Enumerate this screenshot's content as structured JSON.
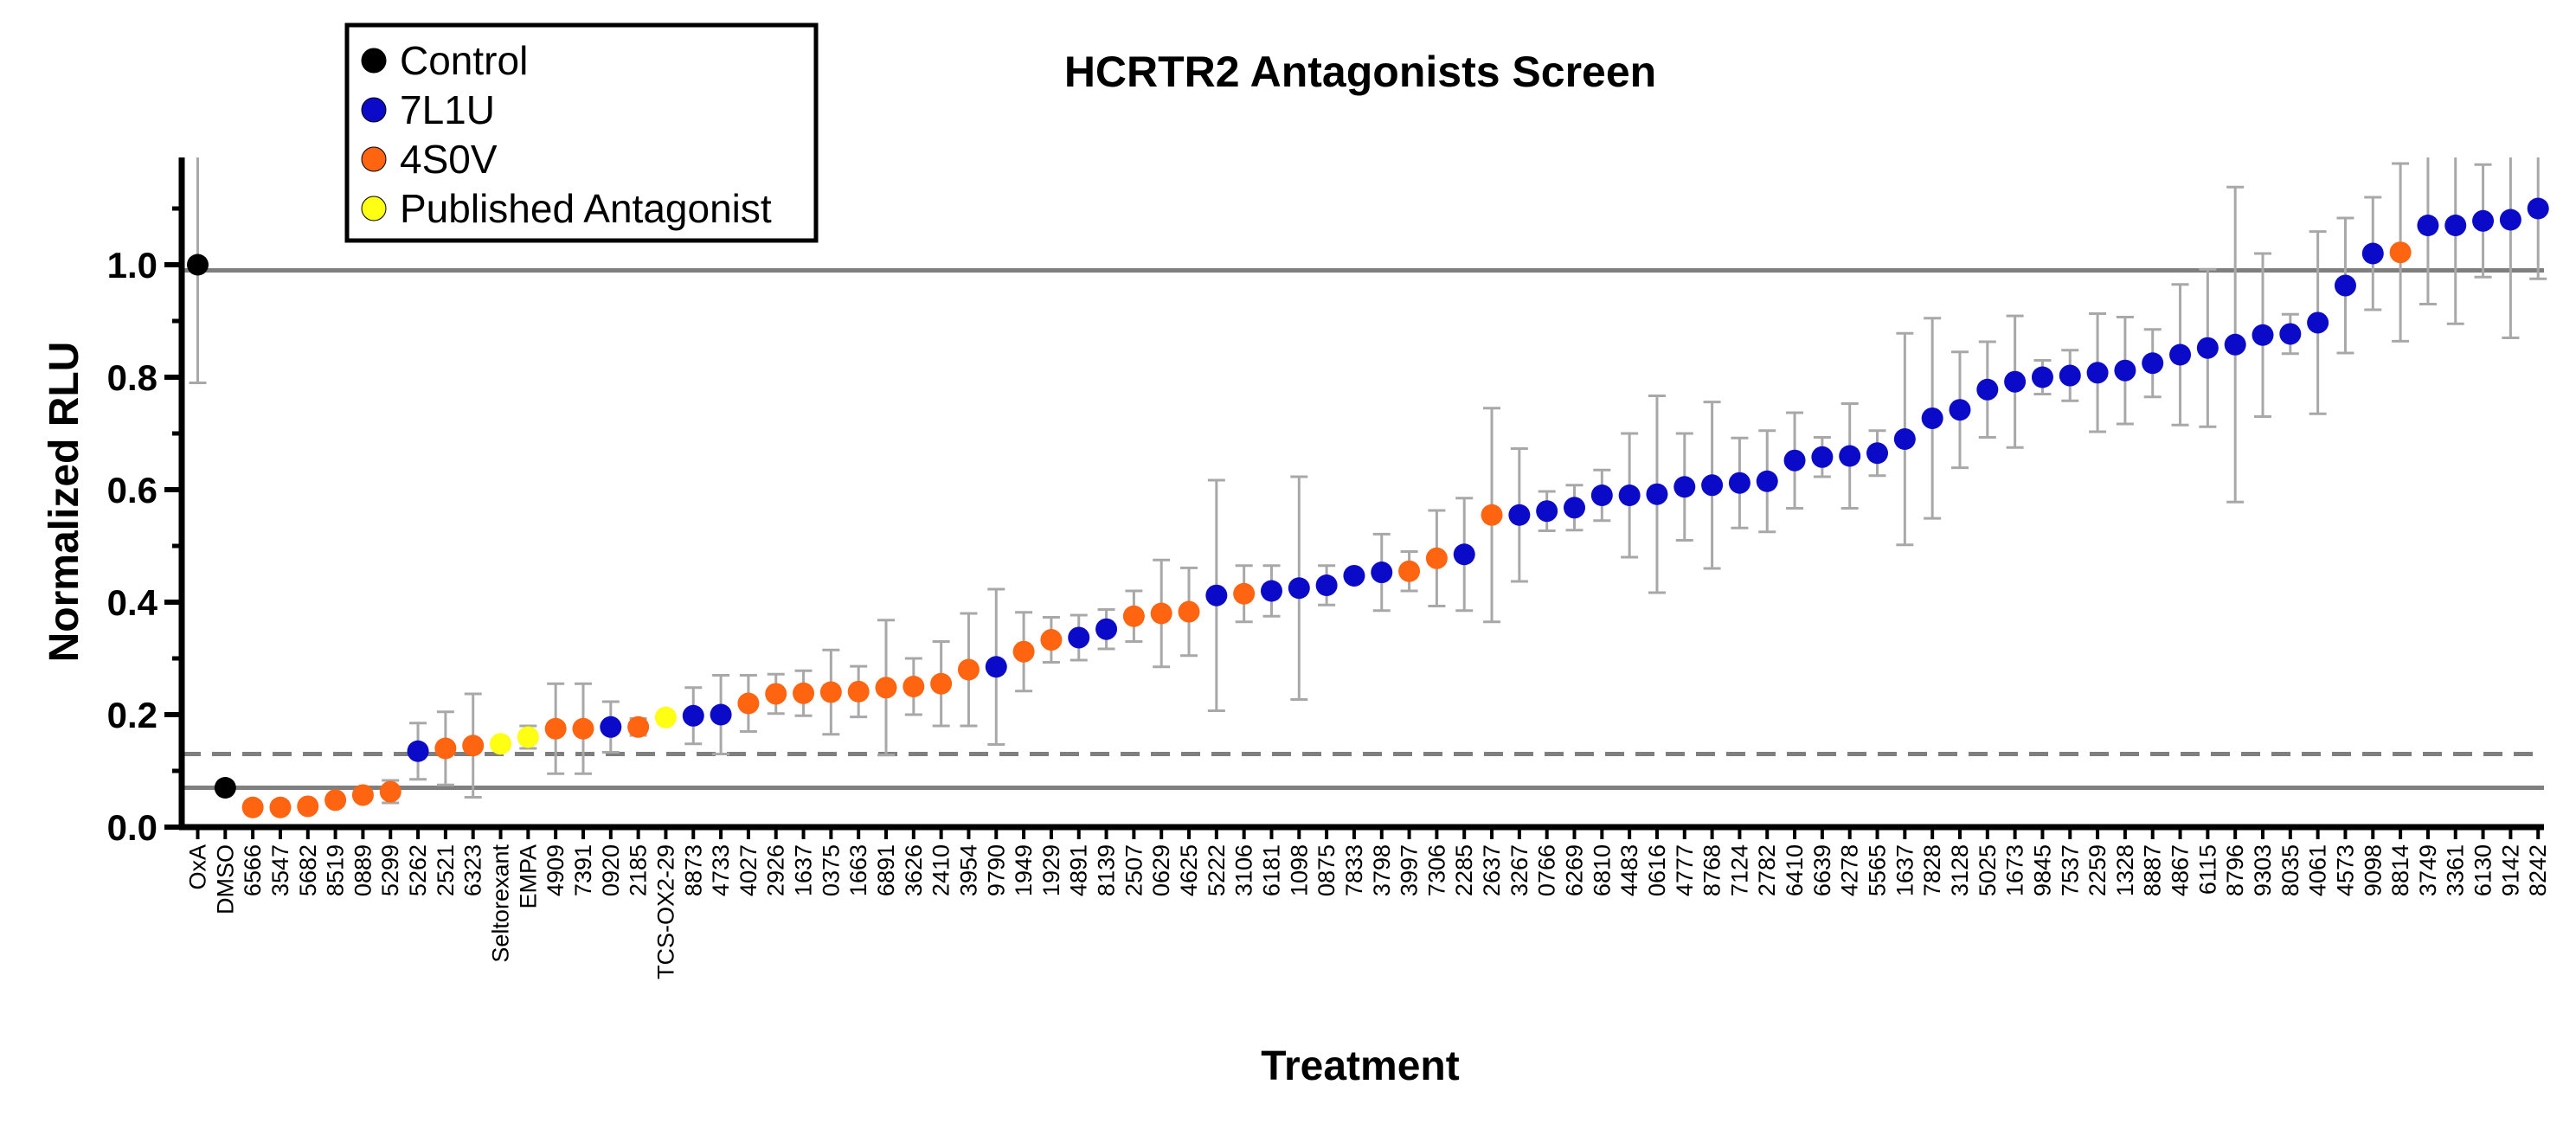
{
  "chart_data": {
    "type": "scatter",
    "title": "HCRTR2 Antagonists Screen",
    "xlabel": "Treatment",
    "ylabel": "Normalized RLU",
    "ylim": [
      0.0,
      1.2
    ],
    "y_ticks": [
      "0.0",
      "0.2",
      "0.4",
      "0.6",
      "0.8",
      "1.0"
    ],
    "grid": false,
    "legend_position": "top-left",
    "colors": {
      "Control": "#000000",
      "7L1U": "#0a0ac8",
      "4S0V": "#ff6410",
      "Published Antagonist": "#ffff14",
      "error_bar": "#a8a8a8",
      "reference_line": "#7f7f7f"
    },
    "legend": [
      "Control",
      "7L1U",
      "4S0V",
      "Published Antagonist"
    ],
    "reference_lines": [
      {
        "y": 0.99,
        "style": "solid"
      },
      {
        "y": 0.07,
        "style": "solid"
      },
      {
        "y": 0.13,
        "style": "dashed"
      }
    ],
    "points": [
      {
        "label": "OxA",
        "group": "Control",
        "y": 1.0,
        "err": 0.21
      },
      {
        "label": "DMSO",
        "group": "Control",
        "y": 0.07,
        "err": 0.0
      },
      {
        "label": "6566",
        "group": "4S0V",
        "y": 0.035,
        "err": 0.01
      },
      {
        "label": "3547",
        "group": "4S0V",
        "y": 0.035,
        "err": 0.01
      },
      {
        "label": "5682",
        "group": "4S0V",
        "y": 0.037,
        "err": 0.01
      },
      {
        "label": "8519",
        "group": "4S0V",
        "y": 0.048,
        "err": 0.01
      },
      {
        "label": "0889",
        "group": "4S0V",
        "y": 0.057,
        "err": 0.01
      },
      {
        "label": "5299",
        "group": "4S0V",
        "y": 0.063,
        "err": 0.02
      },
      {
        "label": "5262",
        "group": "7L1U",
        "y": 0.135,
        "err": 0.05
      },
      {
        "label": "2521",
        "group": "4S0V",
        "y": 0.14,
        "err": 0.065
      },
      {
        "label": "6323",
        "group": "4S0V",
        "y": 0.145,
        "err": 0.092
      },
      {
        "label": "Seltorexant",
        "group": "Published Antagonist",
        "y": 0.148,
        "err": 0.01
      },
      {
        "label": "EMPA",
        "group": "Published Antagonist",
        "y": 0.16,
        "err": 0.02
      },
      {
        "label": "4909",
        "group": "4S0V",
        "y": 0.175,
        "err": 0.08
      },
      {
        "label": "7391",
        "group": "4S0V",
        "y": 0.175,
        "err": 0.08
      },
      {
        "label": "0920",
        "group": "7L1U",
        "y": 0.178,
        "err": 0.045
      },
      {
        "label": "2185",
        "group": "4S0V",
        "y": 0.178,
        "err": 0.015
      },
      {
        "label": "TCS-OX2-29",
        "group": "Published Antagonist",
        "y": 0.195,
        "err": 0.01
      },
      {
        "label": "8873",
        "group": "7L1U",
        "y": 0.198,
        "err": 0.05
      },
      {
        "label": "4733",
        "group": "7L1U",
        "y": 0.2,
        "err": 0.07
      },
      {
        "label": "4027",
        "group": "4S0V",
        "y": 0.22,
        "err": 0.05
      },
      {
        "label": "2926",
        "group": "4S0V",
        "y": 0.237,
        "err": 0.035
      },
      {
        "label": "1637",
        "group": "4S0V",
        "y": 0.238,
        "err": 0.04
      },
      {
        "label": "0375",
        "group": "4S0V",
        "y": 0.24,
        "err": 0.075
      },
      {
        "label": "1663",
        "group": "4S0V",
        "y": 0.241,
        "err": 0.045
      },
      {
        "label": "6891",
        "group": "4S0V",
        "y": 0.248,
        "err": 0.12
      },
      {
        "label": "3626",
        "group": "4S0V",
        "y": 0.25,
        "err": 0.05
      },
      {
        "label": "2410",
        "group": "4S0V",
        "y": 0.255,
        "err": 0.075
      },
      {
        "label": "3954",
        "group": "4S0V",
        "y": 0.28,
        "err": 0.1
      },
      {
        "label": "9790",
        "group": "7L1U",
        "y": 0.285,
        "err": 0.138
      },
      {
        "label": "1949",
        "group": "4S0V",
        "y": 0.312,
        "err": 0.07
      },
      {
        "label": "1929",
        "group": "4S0V",
        "y": 0.333,
        "err": 0.04
      },
      {
        "label": "4891",
        "group": "7L1U",
        "y": 0.337,
        "err": 0.04
      },
      {
        "label": "8139",
        "group": "7L1U",
        "y": 0.352,
        "err": 0.035
      },
      {
        "label": "2507",
        "group": "4S0V",
        "y": 0.375,
        "err": 0.045
      },
      {
        "label": "0629",
        "group": "4S0V",
        "y": 0.38,
        "err": 0.095
      },
      {
        "label": "4625",
        "group": "4S0V",
        "y": 0.383,
        "err": 0.078
      },
      {
        "label": "5222",
        "group": "7L1U",
        "y": 0.412,
        "err": 0.205
      },
      {
        "label": "3106",
        "group": "4S0V",
        "y": 0.415,
        "err": 0.05
      },
      {
        "label": "6181",
        "group": "7L1U",
        "y": 0.42,
        "err": 0.045
      },
      {
        "label": "1098",
        "group": "7L1U",
        "y": 0.425,
        "err": 0.198
      },
      {
        "label": "0875",
        "group": "7L1U",
        "y": 0.43,
        "err": 0.035
      },
      {
        "label": "7833",
        "group": "7L1U",
        "y": 0.447,
        "err": 0.01
      },
      {
        "label": "3798",
        "group": "7L1U",
        "y": 0.453,
        "err": 0.068
      },
      {
        "label": "3997",
        "group": "4S0V",
        "y": 0.455,
        "err": 0.035
      },
      {
        "label": "7306",
        "group": "4S0V",
        "y": 0.478,
        "err": 0.085
      },
      {
        "label": "2285",
        "group": "7L1U",
        "y": 0.485,
        "err": 0.1
      },
      {
        "label": "2637",
        "group": "4S0V",
        "y": 0.555,
        "err": 0.19
      },
      {
        "label": "3267",
        "group": "7L1U",
        "y": 0.555,
        "err": 0.118
      },
      {
        "label": "0766",
        "group": "7L1U",
        "y": 0.562,
        "err": 0.035
      },
      {
        "label": "6269",
        "group": "7L1U",
        "y": 0.568,
        "err": 0.04
      },
      {
        "label": "6810",
        "group": "7L1U",
        "y": 0.59,
        "err": 0.045
      },
      {
        "label": "4483",
        "group": "7L1U",
        "y": 0.59,
        "err": 0.11
      },
      {
        "label": "0616",
        "group": "7L1U",
        "y": 0.592,
        "err": 0.175
      },
      {
        "label": "4777",
        "group": "7L1U",
        "y": 0.605,
        "err": 0.095
      },
      {
        "label": "8768",
        "group": "7L1U",
        "y": 0.608,
        "err": 0.148
      },
      {
        "label": "7124",
        "group": "7L1U",
        "y": 0.612,
        "err": 0.08
      },
      {
        "label": "2782",
        "group": "7L1U",
        "y": 0.615,
        "err": 0.09
      },
      {
        "label": "6410",
        "group": "7L1U",
        "y": 0.652,
        "err": 0.085
      },
      {
        "label": "6639",
        "group": "7L1U",
        "y": 0.658,
        "err": 0.035
      },
      {
        "label": "4278",
        "group": "7L1U",
        "y": 0.66,
        "err": 0.093
      },
      {
        "label": "5565",
        "group": "7L1U",
        "y": 0.665,
        "err": 0.04
      },
      {
        "label": "1637",
        "group": "7L1U",
        "y": 0.69,
        "err": 0.188
      },
      {
        "label": "7828",
        "group": "7L1U",
        "y": 0.727,
        "err": 0.178
      },
      {
        "label": "3128",
        "group": "7L1U",
        "y": 0.742,
        "err": 0.103
      },
      {
        "label": "5025",
        "group": "7L1U",
        "y": 0.778,
        "err": 0.085
      },
      {
        "label": "1673",
        "group": "7L1U",
        "y": 0.792,
        "err": 0.117
      },
      {
        "label": "9845",
        "group": "7L1U",
        "y": 0.8,
        "err": 0.03
      },
      {
        "label": "7537",
        "group": "7L1U",
        "y": 0.803,
        "err": 0.045
      },
      {
        "label": "2259",
        "group": "7L1U",
        "y": 0.808,
        "err": 0.105
      },
      {
        "label": "1328",
        "group": "7L1U",
        "y": 0.812,
        "err": 0.095
      },
      {
        "label": "8887",
        "group": "7L1U",
        "y": 0.825,
        "err": 0.06
      },
      {
        "label": "4867",
        "group": "7L1U",
        "y": 0.84,
        "err": 0.125
      },
      {
        "label": "6115",
        "group": "7L1U",
        "y": 0.852,
        "err": 0.14
      },
      {
        "label": "8796",
        "group": "7L1U",
        "y": 0.858,
        "err": 0.28
      },
      {
        "label": "9303",
        "group": "7L1U",
        "y": 0.875,
        "err": 0.145
      },
      {
        "label": "8035",
        "group": "7L1U",
        "y": 0.877,
        "err": 0.035
      },
      {
        "label": "4061",
        "group": "7L1U",
        "y": 0.897,
        "err": 0.162
      },
      {
        "label": "4573",
        "group": "7L1U",
        "y": 0.963,
        "err": 0.12
      },
      {
        "label": "9098",
        "group": "7L1U",
        "y": 1.02,
        "err": 0.1
      },
      {
        "label": "8814",
        "group": "4S0V",
        "y": 1.022,
        "err": 0.158
      },
      {
        "label": "3749",
        "group": "7L1U",
        "y": 1.07,
        "err": 0.14
      },
      {
        "label": "3361",
        "group": "7L1U",
        "y": 1.07,
        "err": 0.175
      },
      {
        "label": "6130",
        "group": "7L1U",
        "y": 1.078,
        "err": 0.1
      },
      {
        "label": "9142",
        "group": "7L1U",
        "y": 1.08,
        "err": 0.21
      },
      {
        "label": "8242",
        "group": "7L1U",
        "y": 1.1,
        "err": 0.125
      }
    ]
  }
}
